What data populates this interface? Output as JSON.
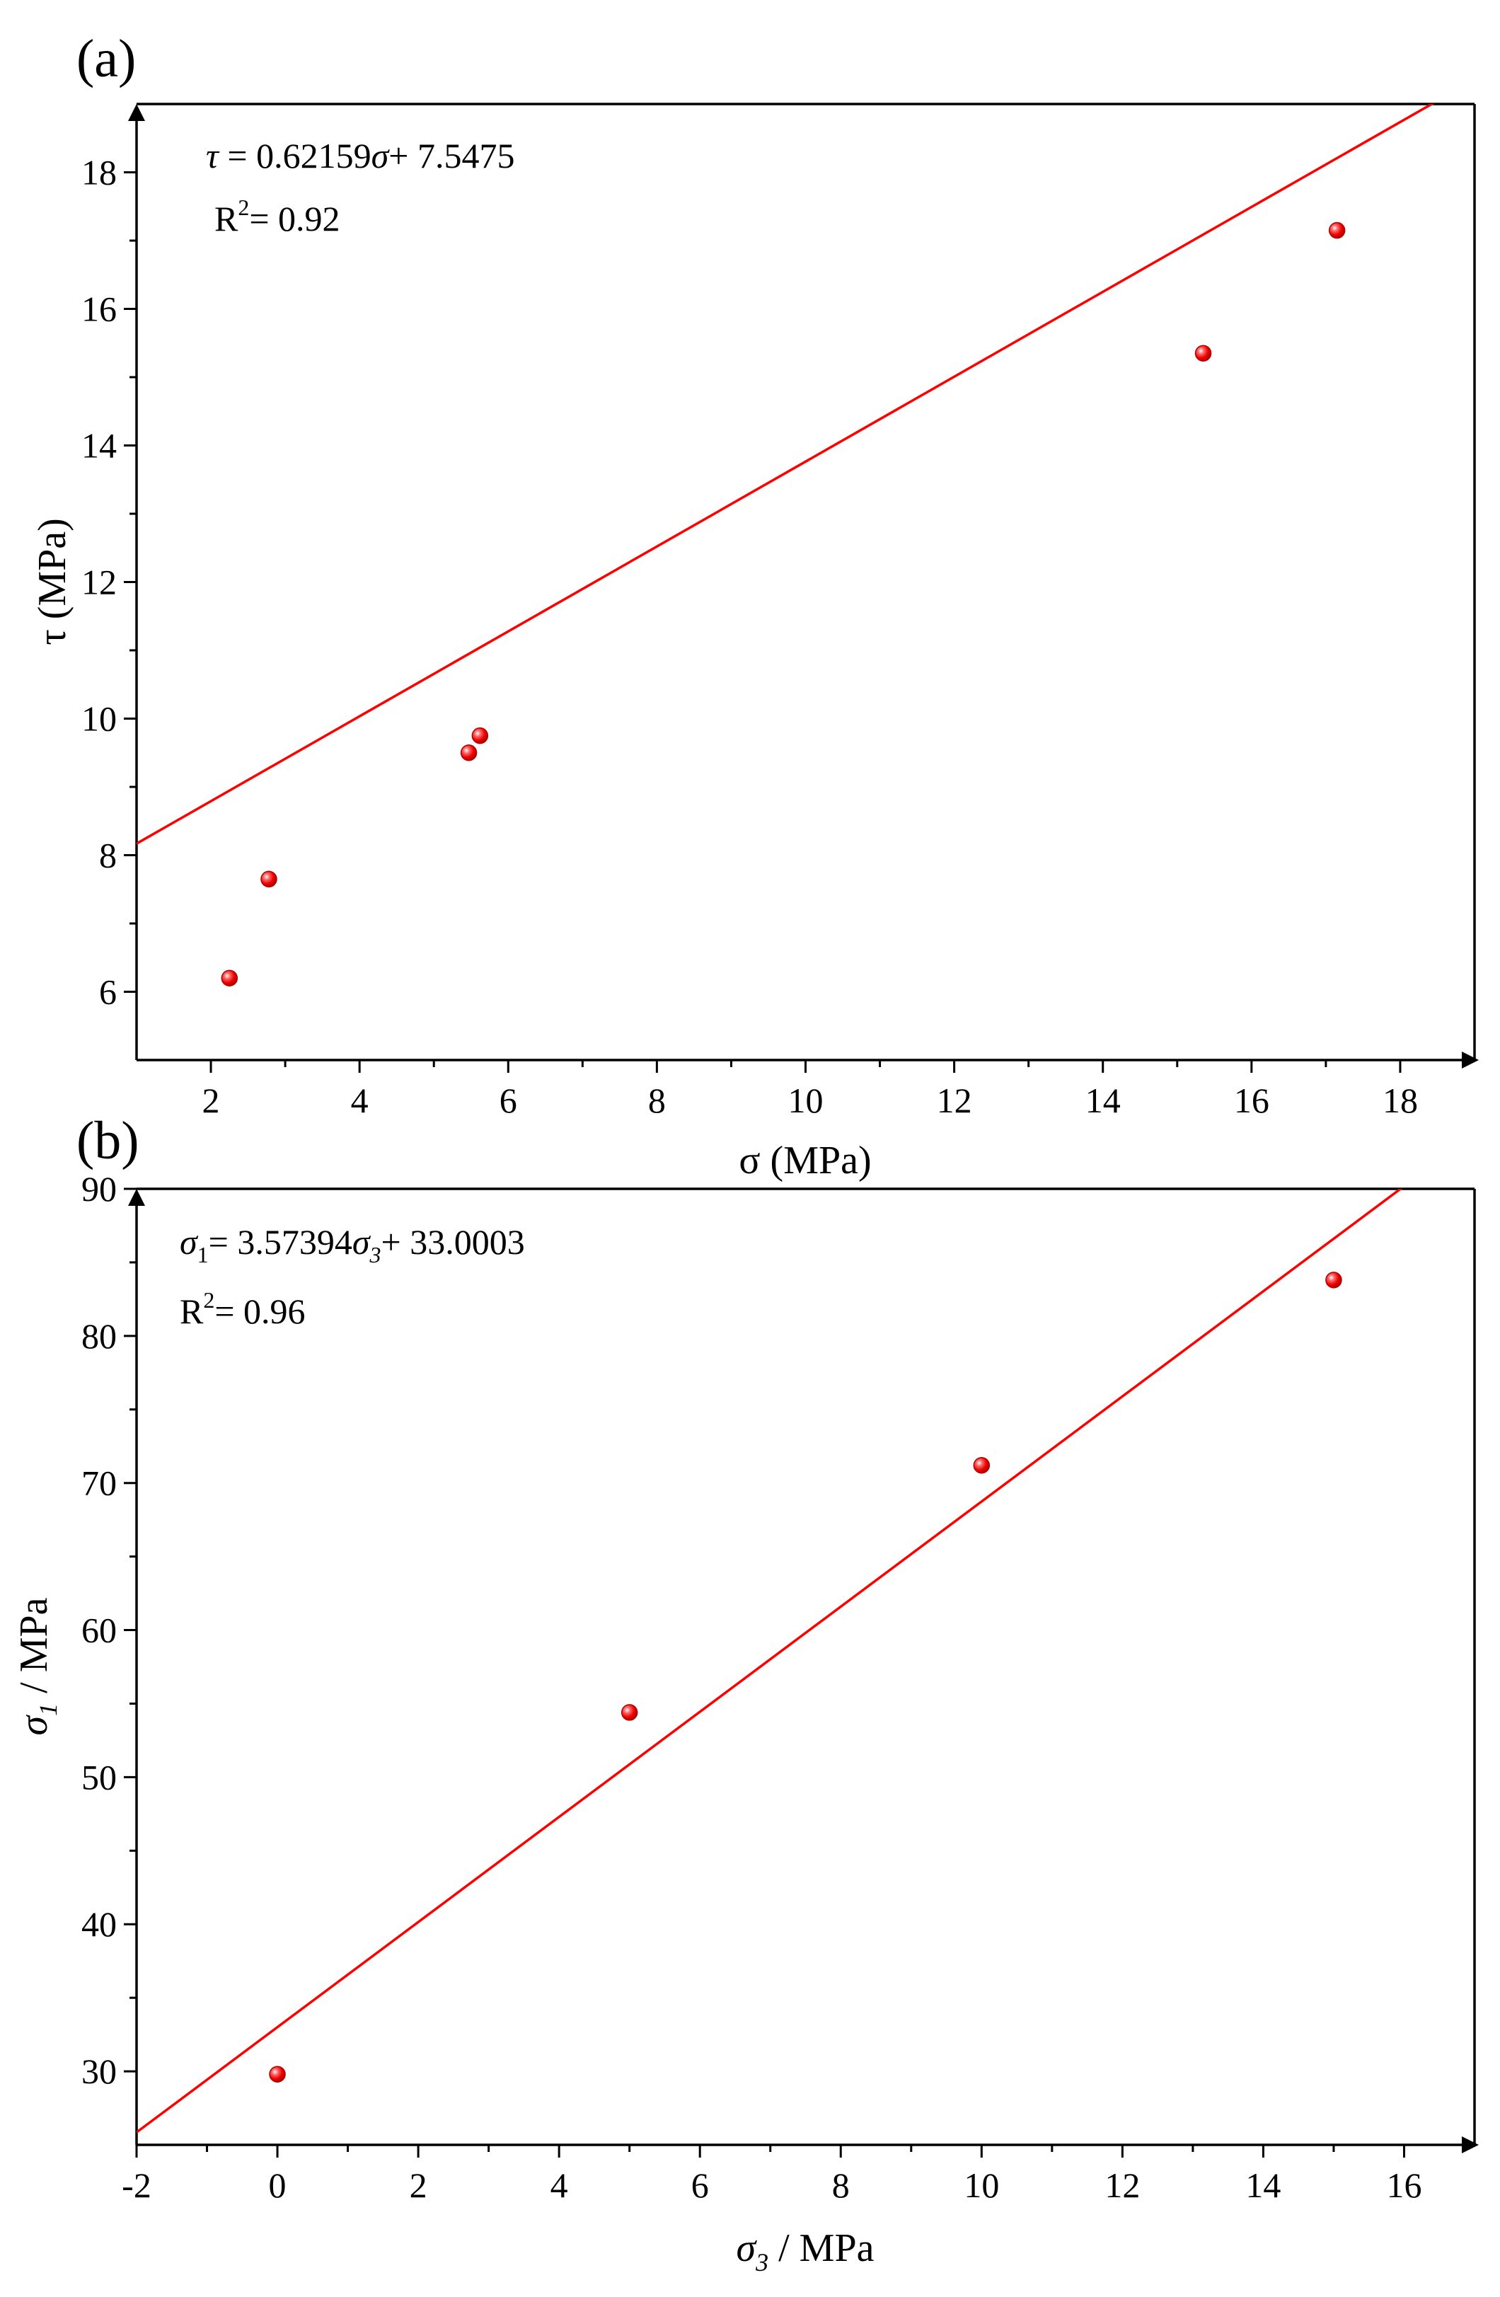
{
  "chart_data": [
    {
      "type": "scatter",
      "panel_label": "(a)",
      "xlabel": "σ (MPa)",
      "ylabel": "τ (MPa)",
      "xlim": [
        1,
        19
      ],
      "ylim": [
        5,
        19
      ],
      "xticks": [
        2,
        4,
        6,
        8,
        10,
        12,
        14,
        16,
        18
      ],
      "yticks": [
        6,
        8,
        10,
        12,
        14,
        16,
        18
      ],
      "points": [
        {
          "x": 2.25,
          "y": 6.2
        },
        {
          "x": 2.78,
          "y": 7.65
        },
        {
          "x": 5.47,
          "y": 9.5
        },
        {
          "x": 5.62,
          "y": 9.75
        },
        {
          "x": 15.35,
          "y": 15.35
        },
        {
          "x": 17.15,
          "y": 17.15
        }
      ],
      "fit": {
        "slope": 0.62159,
        "intercept": 7.5475
      },
      "equation": {
        "lhs": "τ",
        "eq": " = 0.62159",
        "var": "σ",
        "rest": "+ 7.5475"
      },
      "r2": {
        "base": "R",
        "sup": "2",
        "rest": "= 0.92"
      },
      "marker_color": "#ff0000",
      "line_color": "#ff0000"
    },
    {
      "type": "scatter",
      "panel_label": "(b)",
      "xlabel": {
        "var": "σ",
        "sub": "3",
        "rest": " / MPa"
      },
      "ylabel": {
        "var": "σ",
        "sub": "1",
        "rest": " / MPa"
      },
      "xlim": [
        -2,
        17
      ],
      "ylim": [
        25,
        90
      ],
      "xticks": [
        -2,
        0,
        2,
        4,
        6,
        8,
        10,
        12,
        14,
        16
      ],
      "yticks": [
        30,
        40,
        50,
        60,
        70,
        80,
        90
      ],
      "points": [
        {
          "x": 0,
          "y": 29.8
        },
        {
          "x": 5,
          "y": 54.4
        },
        {
          "x": 10,
          "y": 71.2
        },
        {
          "x": 15,
          "y": 83.8
        }
      ],
      "fit": {
        "slope": 3.57394,
        "intercept": 33.0003
      },
      "equation": {
        "v1": "σ",
        "s1": "1",
        "mid": "= 3.57394",
        "v2": "σ",
        "s2": "3",
        "rest": "+ 33.0003"
      },
      "r2": {
        "base": "R",
        "sup": "2",
        "rest": "= 0.96"
      },
      "marker_color": "#ff0000",
      "line_color": "#ff0000"
    }
  ]
}
